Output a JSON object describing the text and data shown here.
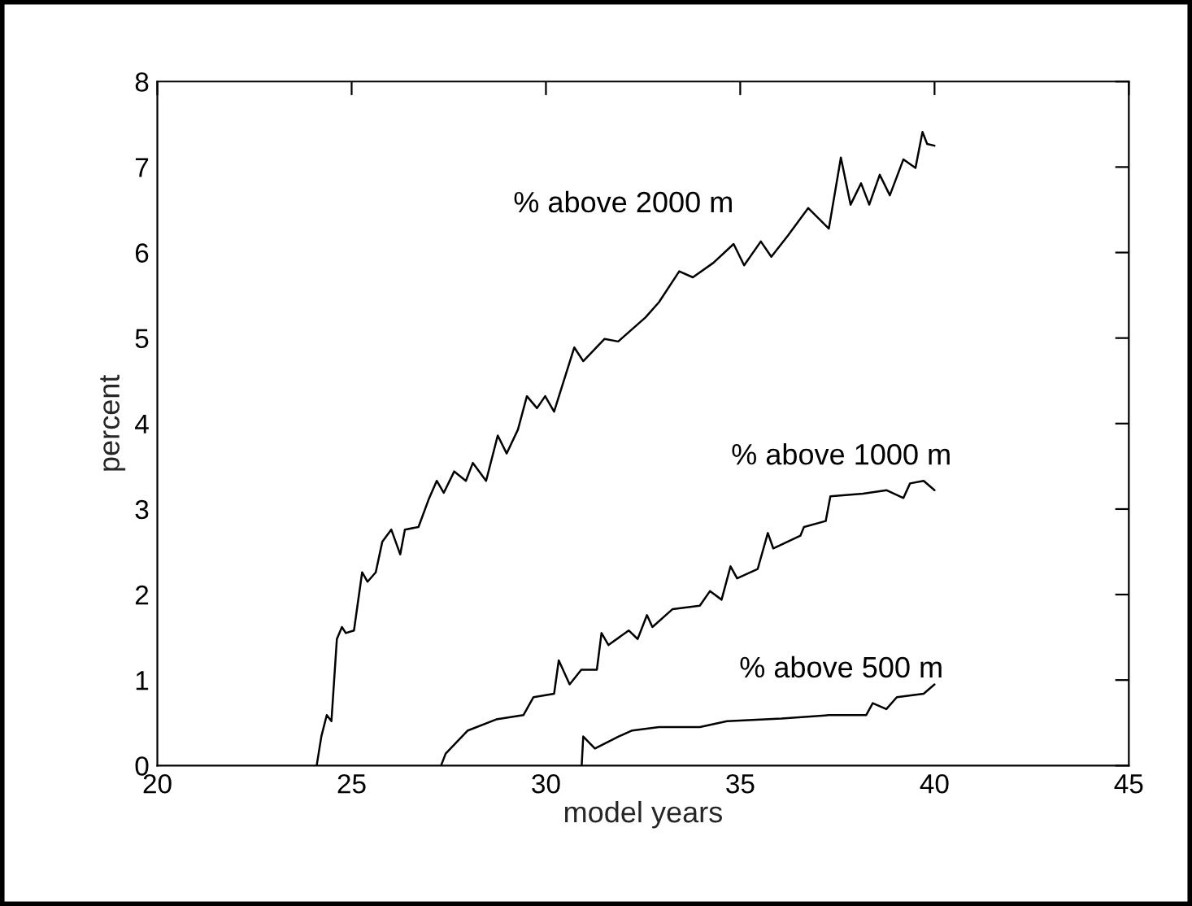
{
  "chart_data": {
    "type": "line",
    "xlabel": "model years",
    "ylabel": "percent",
    "xlim": [
      20,
      45
    ],
    "xticks": [
      20,
      25,
      30,
      35,
      40,
      45
    ],
    "ylim": [
      0,
      8
    ],
    "yticks": [
      0,
      1,
      2,
      3,
      4,
      5,
      6,
      7,
      8
    ],
    "grid": false,
    "series": [
      {
        "name": "% above 2000 m",
        "color": "#000000",
        "x": [
          24.1,
          24.22,
          24.36,
          24.48,
          24.62,
          24.75,
          24.85,
          25.06,
          25.27,
          25.41,
          25.62,
          25.79,
          26.02,
          26.25,
          26.37,
          26.72,
          26.98,
          27.19,
          27.37,
          27.64,
          27.94,
          28.12,
          28.46,
          28.76,
          28.99,
          29.28,
          29.51,
          29.77,
          29.98,
          30.21,
          30.73,
          30.96,
          31.51,
          31.86,
          32.56,
          32.91,
          33.43,
          33.78,
          34.31,
          34.83,
          35.1,
          35.53,
          35.8,
          36.23,
          36.75,
          37.28,
          37.59,
          37.84,
          38.11,
          38.32,
          38.59,
          38.85,
          39.2,
          39.51,
          39.69,
          39.81,
          40.0
        ],
        "values": [
          0,
          0.34,
          0.59,
          0.52,
          1.48,
          1.62,
          1.55,
          1.58,
          2.26,
          2.15,
          2.26,
          2.62,
          2.76,
          2.47,
          2.76,
          2.79,
          3.11,
          3.33,
          3.19,
          3.44,
          3.33,
          3.54,
          3.33,
          3.86,
          3.65,
          3.93,
          4.32,
          4.18,
          4.32,
          4.14,
          4.89,
          4.73,
          4.99,
          4.96,
          5.24,
          5.42,
          5.78,
          5.71,
          5.88,
          6.1,
          5.85,
          6.13,
          5.95,
          6.2,
          6.52,
          6.28,
          7.11,
          6.56,
          6.81,
          6.56,
          6.91,
          6.67,
          7.09,
          6.99,
          7.41,
          7.27,
          7.25
        ]
      },
      {
        "name": "% above 1000 m",
        "color": "#000000",
        "x": [
          27.3,
          27.42,
          27.99,
          28.72,
          29.42,
          29.68,
          30.21,
          30.33,
          30.61,
          30.91,
          31.31,
          31.43,
          31.61,
          32.13,
          32.36,
          32.6,
          32.74,
          33.26,
          33.96,
          34.22,
          34.52,
          34.75,
          34.92,
          35.45,
          35.71,
          35.85,
          36.55,
          36.64,
          37.2,
          37.32,
          38.16,
          38.77,
          39.2,
          39.37,
          39.72,
          40.0
        ],
        "values": [
          0,
          0.14,
          0.41,
          0.54,
          0.59,
          0.8,
          0.84,
          1.23,
          0.95,
          1.12,
          1.12,
          1.55,
          1.41,
          1.58,
          1.48,
          1.76,
          1.62,
          1.83,
          1.87,
          2.04,
          1.94,
          2.33,
          2.19,
          2.3,
          2.72,
          2.54,
          2.69,
          2.79,
          2.86,
          3.15,
          3.18,
          3.22,
          3.13,
          3.3,
          3.33,
          3.22
        ]
      },
      {
        "name": "% above 500 m",
        "color": "#000000",
        "x": [
          30.92,
          30.96,
          31.26,
          31.87,
          32.22,
          32.91,
          33.96,
          34.66,
          36.06,
          37.28,
          38.24,
          38.41,
          38.76,
          39.03,
          39.72,
          40.0
        ],
        "values": [
          0,
          0.34,
          0.2,
          0.34,
          0.41,
          0.45,
          0.45,
          0.52,
          0.55,
          0.59,
          0.59,
          0.73,
          0.66,
          0.8,
          0.84,
          0.95
        ]
      }
    ]
  }
}
